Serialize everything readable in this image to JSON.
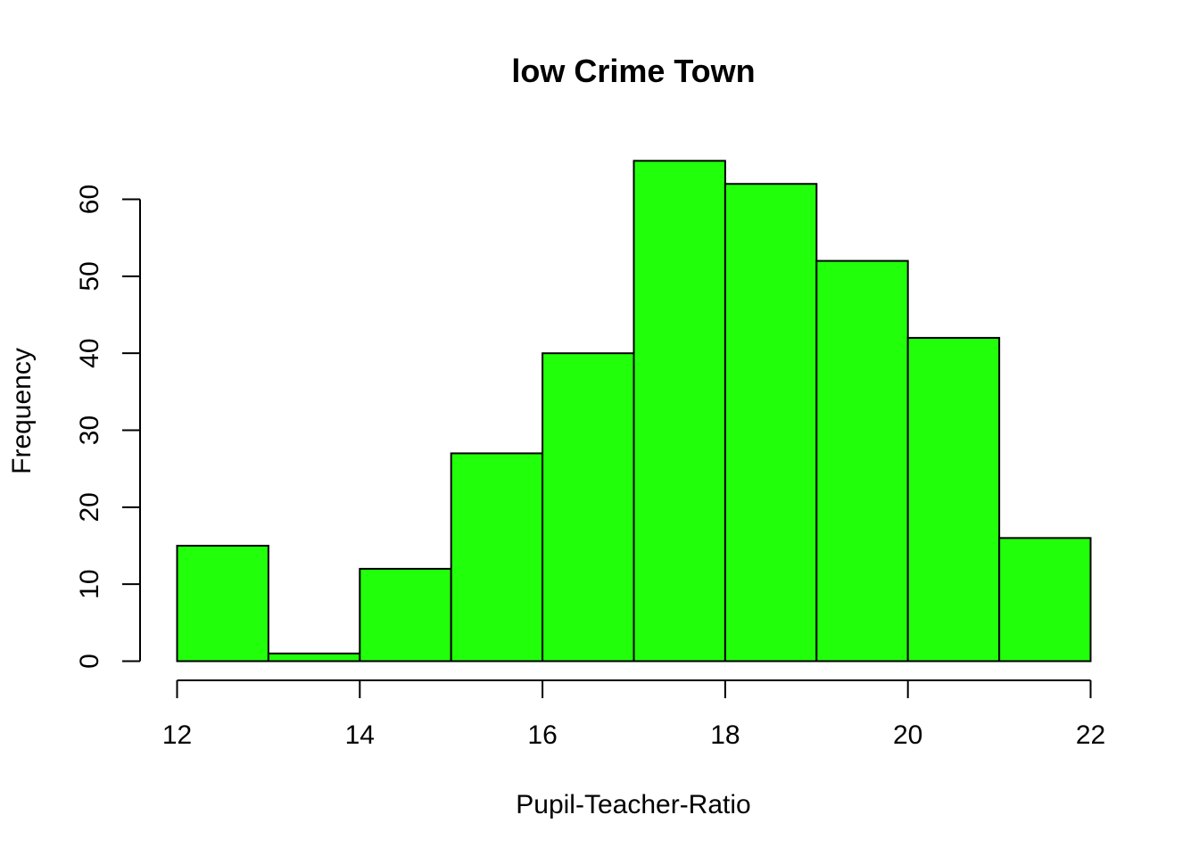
{
  "chart_data": {
    "type": "bar",
    "title": "low Crime Town",
    "xlabel": "Pupil-Teacher-Ratio",
    "ylabel": "Frequency",
    "bins": [
      {
        "from": 12,
        "to": 13,
        "count": 15
      },
      {
        "from": 13,
        "to": 14,
        "count": 1
      },
      {
        "from": 14,
        "to": 15,
        "count": 12
      },
      {
        "from": 15,
        "to": 16,
        "count": 27
      },
      {
        "from": 16,
        "to": 17,
        "count": 40
      },
      {
        "from": 17,
        "to": 18,
        "count": 65
      },
      {
        "from": 18,
        "to": 19,
        "count": 62
      },
      {
        "from": 19,
        "to": 20,
        "count": 52
      },
      {
        "from": 20,
        "to": 21,
        "count": 42
      },
      {
        "from": 21,
        "to": 22,
        "count": 16
      }
    ],
    "xlim": [
      12,
      22
    ],
    "ylim": [
      0,
      60
    ],
    "x_ticks": [
      12,
      14,
      16,
      18,
      20,
      22
    ],
    "y_ticks": [
      0,
      10,
      20,
      30,
      40,
      50,
      60
    ],
    "bar_color": "#22ff0a",
    "grid": false,
    "legend": false
  }
}
